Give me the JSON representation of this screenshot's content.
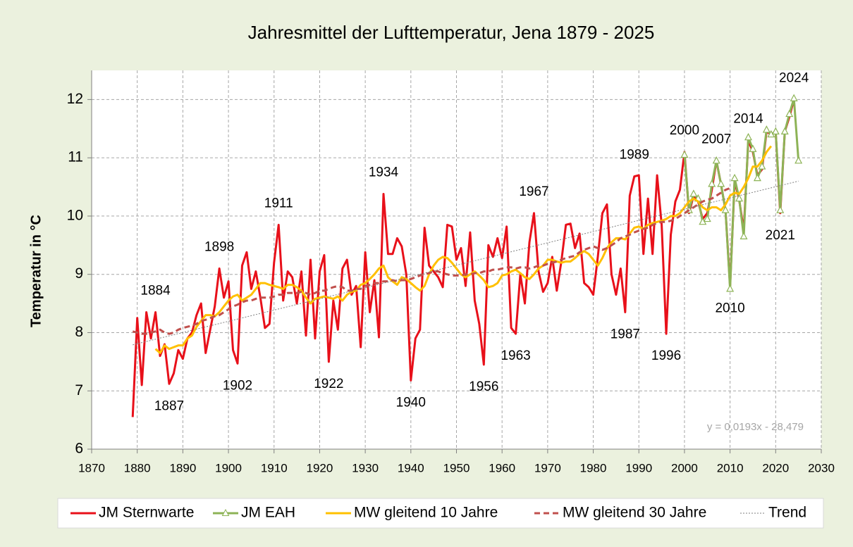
{
  "chart_data": {
    "type": "line",
    "title": "Jahresmittel der Lufttemperatur, Jena 1879 - 2025",
    "y_label": "Temperatur in °C",
    "trend_label": "y = 0,0193x - 28,479",
    "xlim": [
      1870,
      2030
    ],
    "xticks": [
      1870,
      1880,
      1890,
      1900,
      1910,
      1920,
      1930,
      1940,
      1950,
      1960,
      1970,
      1980,
      1990,
      2000,
      2010,
      2020,
      2030
    ],
    "ylim": [
      6,
      12.5
    ],
    "yticks": [
      6,
      7,
      8,
      9,
      10,
      11,
      12
    ],
    "grid": true,
    "legend": "bottom",
    "x": [
      1879,
      1880,
      1881,
      1882,
      1883,
      1884,
      1885,
      1886,
      1887,
      1888,
      1889,
      1890,
      1891,
      1892,
      1893,
      1894,
      1895,
      1896,
      1897,
      1898,
      1899,
      1900,
      1901,
      1902,
      1903,
      1904,
      1905,
      1906,
      1907,
      1908,
      1909,
      1910,
      1911,
      1912,
      1913,
      1914,
      1915,
      1916,
      1917,
      1918,
      1919,
      1920,
      1921,
      1922,
      1923,
      1924,
      1925,
      1926,
      1927,
      1928,
      1929,
      1930,
      1931,
      1932,
      1933,
      1934,
      1935,
      1936,
      1937,
      1938,
      1939,
      1940,
      1941,
      1942,
      1943,
      1944,
      1945,
      1946,
      1947,
      1948,
      1949,
      1950,
      1951,
      1952,
      1953,
      1954,
      1955,
      1956,
      1957,
      1958,
      1959,
      1960,
      1961,
      1962,
      1963,
      1964,
      1965,
      1966,
      1967,
      1968,
      1969,
      1970,
      1971,
      1972,
      1973,
      1974,
      1975,
      1976,
      1977,
      1978,
      1979,
      1980,
      1981,
      1982,
      1983,
      1984,
      1985,
      1986,
      1987,
      1988,
      1989,
      1990,
      1991,
      1992,
      1993,
      1994,
      1995,
      1996,
      1997,
      1998,
      1999,
      2000,
      2001,
      2002,
      2003,
      2004,
      2005,
      2006,
      2007,
      2008,
      2009,
      2010,
      2011,
      2012,
      2013,
      2014,
      2015,
      2016,
      2017,
      2018,
      2019,
      2020,
      2021,
      2022,
      2023,
      2024,
      2025
    ],
    "series": [
      {
        "name": "JM Sternwarte",
        "color": "#e8101a",
        "line_style": "solid",
        "values": [
          6.55,
          8.25,
          7.1,
          8.35,
          7.9,
          8.35,
          7.6,
          7.8,
          7.12,
          7.3,
          7.7,
          7.55,
          7.9,
          8.0,
          8.3,
          8.5,
          7.65,
          8.05,
          8.45,
          9.1,
          8.6,
          8.88,
          7.7,
          7.47,
          9.15,
          9.38,
          8.75,
          9.05,
          8.6,
          8.08,
          8.15,
          9.2,
          9.85,
          8.55,
          9.05,
          8.95,
          8.5,
          9.05,
          7.95,
          9.25,
          7.9,
          9.05,
          9.33,
          7.5,
          8.55,
          8.05,
          9.1,
          9.25,
          8.65,
          8.8,
          7.75,
          9.38,
          8.35,
          8.9,
          7.92,
          10.38,
          9.35,
          9.35,
          9.62,
          9.48,
          9.0,
          7.18,
          7.9,
          8.05,
          9.8,
          9.15,
          9.05,
          8.95,
          8.78,
          9.85,
          9.82,
          9.25,
          9.45,
          8.8,
          9.72,
          8.55,
          8.15,
          7.45,
          9.5,
          9.3,
          9.62,
          9.28,
          9.82,
          8.08,
          7.98,
          9.0,
          8.5,
          9.55,
          10.05,
          9.05,
          8.7,
          8.85,
          9.3,
          8.72,
          9.22,
          9.85,
          9.87,
          9.45,
          9.7,
          8.85,
          8.78,
          8.65,
          9.3,
          10.05,
          10.2,
          9.0,
          8.65,
          9.1,
          8.35,
          10.35,
          10.68,
          10.7,
          9.35,
          10.3,
          9.35,
          10.7,
          9.85,
          7.98,
          9.68,
          10.25,
          10.45,
          11.1,
          10.05,
          10.35,
          10.25,
          9.95,
          10.05,
          10.45,
          10.95,
          10.55,
          10.1,
          8.8,
          10.6,
          10.28,
          9.75,
          11.3,
          11.1,
          10.7,
          10.8,
          11.45,
          11.4,
          11.45,
          10.05,
          11.45,
          11.7,
          12.0,
          null
        ]
      },
      {
        "name": "JM EAH",
        "color": "#8db356",
        "line_style": "solid",
        "marker": "triangle",
        "x": [
          2000,
          2001,
          2002,
          2003,
          2004,
          2005,
          2006,
          2007,
          2008,
          2009,
          2010,
          2011,
          2012,
          2013,
          2014,
          2015,
          2016,
          2017,
          2018,
          2019,
          2020,
          2021,
          2022,
          2023,
          2024,
          2025
        ],
        "values": [
          11.05,
          10.1,
          10.38,
          10.3,
          9.9,
          9.95,
          10.55,
          10.95,
          10.55,
          10.1,
          8.75,
          10.65,
          10.3,
          9.65,
          11.35,
          11.15,
          10.65,
          10.85,
          11.48,
          11.4,
          11.45,
          10.1,
          11.45,
          11.75,
          12.02,
          10.95
        ]
      },
      {
        "name": "MW gleitend 10 Jahre",
        "color": "#ffc000",
        "line_style": "solid",
        "values": [
          null,
          null,
          null,
          null,
          null,
          7.72,
          7.65,
          7.78,
          7.72,
          7.75,
          7.78,
          7.78,
          7.9,
          7.95,
          8.1,
          8.2,
          8.3,
          8.3,
          8.28,
          8.35,
          8.45,
          8.55,
          8.62,
          8.65,
          8.55,
          8.6,
          8.65,
          8.75,
          8.85,
          8.85,
          8.82,
          8.8,
          8.78,
          8.75,
          8.82,
          8.82,
          8.78,
          8.72,
          8.6,
          8.5,
          8.58,
          8.6,
          8.62,
          8.6,
          8.58,
          8.62,
          8.55,
          8.65,
          8.7,
          8.72,
          8.82,
          8.85,
          8.92,
          9.0,
          9.1,
          9.15,
          8.95,
          8.88,
          8.82,
          8.95,
          8.92,
          8.85,
          8.78,
          8.72,
          8.8,
          9.0,
          9.15,
          9.25,
          9.3,
          9.28,
          9.2,
          9.1,
          9.0,
          8.95,
          9.0,
          9.05,
          8.98,
          8.9,
          8.78,
          8.8,
          8.85,
          8.98,
          9.0,
          9.05,
          9.08,
          9.02,
          8.95,
          8.92,
          9.0,
          9.1,
          9.15,
          9.25,
          9.25,
          9.22,
          9.2,
          9.22,
          9.22,
          9.28,
          9.35,
          9.4,
          9.35,
          9.25,
          9.15,
          9.28,
          9.45,
          9.55,
          9.62,
          9.62,
          9.6,
          9.7,
          9.8,
          9.82,
          9.78,
          9.85,
          9.88,
          9.9,
          9.92,
          9.95,
          10.0,
          10.0,
          10.05,
          10.15,
          10.25,
          10.3,
          10.25,
          10.15,
          10.1,
          10.15,
          10.15,
          10.1,
          10.2,
          10.35,
          10.4,
          10.38,
          10.5,
          10.65,
          10.85,
          10.85,
          10.95,
          11.1,
          11.2,
          null,
          null,
          null,
          null,
          null,
          null
        ]
      },
      {
        "name": "MW gleitend 30 Jahre",
        "color": "#c0504d",
        "line_style": "dashed",
        "values": [
          8.02,
          8.0,
          7.98,
          7.98,
          8.0,
          8.02,
          8.05,
          8.0,
          7.98,
          8.0,
          8.05,
          8.08,
          8.1,
          8.12,
          8.15,
          8.2,
          8.22,
          8.25,
          8.28,
          8.3,
          8.35,
          8.4,
          8.45,
          8.48,
          8.52,
          8.55,
          8.55,
          8.58,
          8.6,
          8.6,
          8.6,
          8.62,
          8.65,
          8.65,
          8.68,
          8.68,
          8.68,
          8.7,
          8.68,
          8.65,
          8.68,
          8.72,
          8.72,
          8.75,
          8.78,
          8.8,
          8.78,
          8.72,
          8.72,
          8.75,
          8.75,
          8.8,
          8.82,
          8.85,
          8.85,
          8.88,
          8.88,
          8.9,
          8.88,
          8.9,
          8.9,
          8.92,
          8.95,
          8.98,
          9.0,
          9.02,
          9.05,
          9.05,
          9.02,
          9.0,
          8.98,
          8.98,
          8.98,
          9.0,
          9.0,
          9.02,
          9.02,
          9.05,
          9.05,
          9.08,
          9.08,
          9.1,
          9.12,
          9.12,
          9.1,
          9.12,
          9.12,
          9.1,
          9.12,
          9.15,
          9.15,
          9.18,
          9.2,
          9.22,
          9.25,
          9.28,
          9.3,
          9.32,
          9.38,
          9.42,
          9.45,
          9.48,
          9.45,
          9.42,
          9.45,
          9.5,
          9.55,
          9.62,
          9.65,
          9.68,
          9.72,
          9.75,
          9.78,
          9.8,
          9.85,
          9.88,
          9.9,
          9.9,
          9.92,
          9.95,
          10.0,
          10.05,
          10.1,
          10.15,
          10.2,
          10.25,
          10.28,
          10.3,
          10.35,
          10.4,
          10.45,
          10.48,
          null,
          null,
          null,
          null,
          null,
          null,
          null,
          null,
          null,
          null,
          null,
          null,
          null,
          null,
          null
        ]
      },
      {
        "name": "Trend",
        "color": "#7f7f7f",
        "line_style": "dotted",
        "x": [
          1879,
          2025
        ],
        "values": [
          7.79,
          10.6
        ]
      }
    ],
    "annotations": [
      "1884",
      "1887",
      "1898",
      "1902",
      "1911",
      "1922",
      "1934",
      "1940",
      "1956",
      "1963",
      "1967",
      "1987",
      "1989",
      "1996",
      "2000",
      "2007",
      "2010",
      "2014",
      "2021",
      "2024"
    ]
  }
}
